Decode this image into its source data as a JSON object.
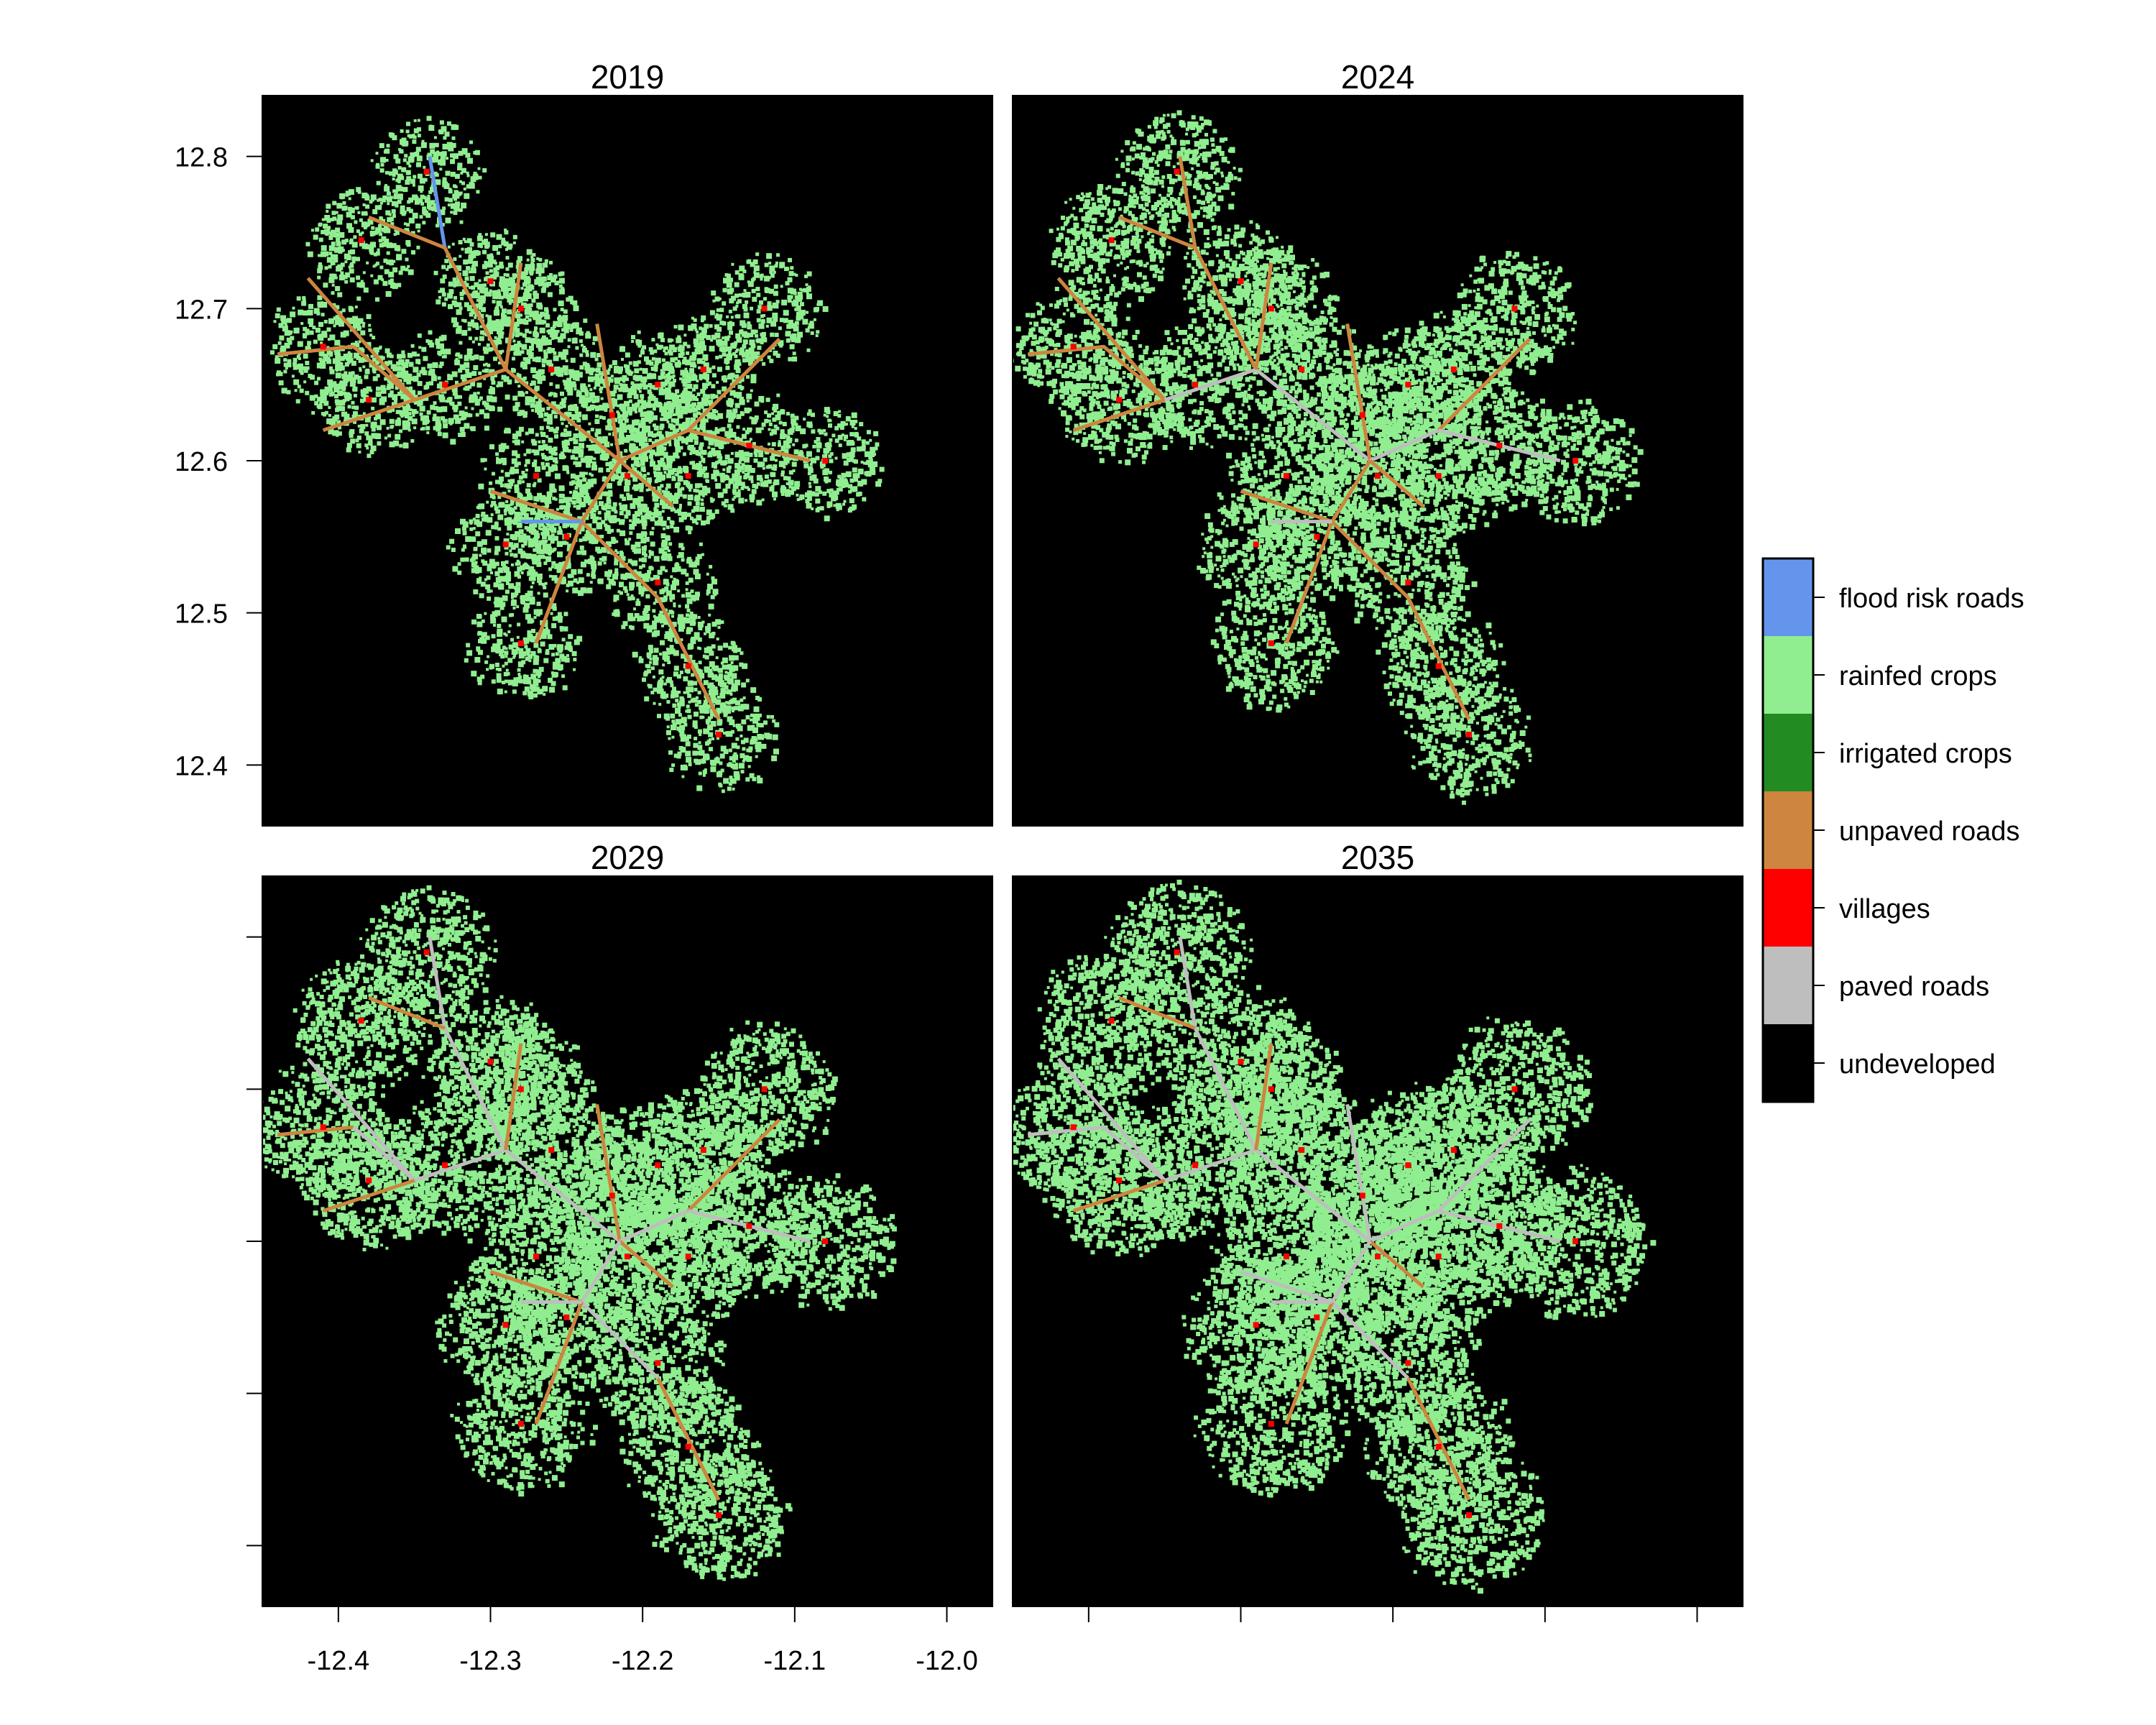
{
  "panels": [
    {
      "title": "2019",
      "stage": 0
    },
    {
      "title": "2024",
      "stage": 1
    },
    {
      "title": "2029",
      "stage": 2
    },
    {
      "title": "2035",
      "stage": 3
    }
  ],
  "axes": {
    "x_ticks": [
      "-12.4",
      "-12.3",
      "-12.2",
      "-12.1",
      "-12.0"
    ],
    "y_ticks": [
      "12.8",
      "12.7",
      "12.6",
      "12.5",
      "12.4"
    ]
  },
  "legend": {
    "position": "right",
    "items": [
      {
        "label": "flood risk roads",
        "color": "#6495ED"
      },
      {
        "label": "rainfed crops",
        "color": "#90EE90"
      },
      {
        "label": "irrigated crops",
        "color": "#228B22"
      },
      {
        "label": "unpaved roads",
        "color": "#CD853F"
      },
      {
        "label": "villages",
        "color": "#FF0000"
      },
      {
        "label": "paved roads",
        "color": "#BEBEBE"
      },
      {
        "label": "undeveloped",
        "color": "#000000"
      }
    ]
  },
  "chart_data": {
    "type": "heatmap",
    "xlim": [
      -12.45,
      -11.97
    ],
    "ylim": [
      12.36,
      12.84
    ],
    "x_ticks": [
      -12.4,
      -12.3,
      -12.2,
      -12.1,
      -12.0
    ],
    "y_ticks": [
      12.8,
      12.7,
      12.6,
      12.5,
      12.4
    ],
    "years": [
      "2019",
      "2024",
      "2029",
      "2035"
    ],
    "categories": [
      "flood risk roads",
      "rainfed crops",
      "irrigated crops",
      "unpaved roads",
      "villages",
      "paved roads",
      "undeveloped"
    ],
    "background_category": "undeveloped",
    "village_clusters": [
      [
        -12.342,
        12.79
      ],
      [
        -12.385,
        12.745
      ],
      [
        -12.3,
        12.718
      ],
      [
        -12.41,
        12.675
      ],
      [
        -12.38,
        12.64
      ],
      [
        -12.33,
        12.65
      ],
      [
        -12.28,
        12.7
      ],
      [
        -12.26,
        12.66
      ],
      [
        -12.22,
        12.63
      ],
      [
        -12.19,
        12.65
      ],
      [
        -12.16,
        12.66
      ],
      [
        -12.12,
        12.7
      ],
      [
        -12.13,
        12.61
      ],
      [
        -12.08,
        12.6
      ],
      [
        -12.17,
        12.59
      ],
      [
        -12.21,
        12.59
      ],
      [
        -12.27,
        12.59
      ],
      [
        -12.25,
        12.55
      ],
      [
        -12.29,
        12.545
      ],
      [
        -12.28,
        12.48
      ],
      [
        -12.19,
        12.52
      ],
      [
        -12.17,
        12.465
      ],
      [
        -12.15,
        12.42
      ]
    ],
    "road_network": [
      {
        "from": [
          -12.34,
          12.8
        ],
        "to": [
          -12.33,
          12.74
        ],
        "status": [
          "flood risk roads",
          "unpaved roads",
          "paved roads",
          "paved roads"
        ]
      },
      {
        "from": [
          -12.33,
          12.74
        ],
        "to": [
          -12.29,
          12.66
        ],
        "status": [
          "unpaved roads",
          "unpaved roads",
          "paved roads",
          "paved roads"
        ]
      },
      {
        "from": [
          -12.38,
          12.76
        ],
        "to": [
          -12.33,
          12.74
        ],
        "status": [
          "unpaved roads",
          "unpaved roads",
          "unpaved roads",
          "unpaved roads"
        ]
      },
      {
        "from": [
          -12.42,
          12.72
        ],
        "to": [
          -12.35,
          12.64
        ],
        "status": [
          "unpaved roads",
          "unpaved roads",
          "paved roads",
          "paved roads"
        ]
      },
      {
        "from": [
          -12.44,
          12.67
        ],
        "to": [
          -12.39,
          12.675
        ],
        "status": [
          "unpaved roads",
          "unpaved roads",
          "unpaved roads",
          "paved roads"
        ]
      },
      {
        "from": [
          -12.39,
          12.675
        ],
        "to": [
          -12.35,
          12.64
        ],
        "status": [
          "unpaved roads",
          "unpaved roads",
          "paved roads",
          "paved roads"
        ]
      },
      {
        "from": [
          -12.35,
          12.64
        ],
        "to": [
          -12.29,
          12.66
        ],
        "status": [
          "unpaved roads",
          "paved roads",
          "paved roads",
          "paved roads"
        ]
      },
      {
        "from": [
          -12.41,
          12.62
        ],
        "to": [
          -12.35,
          12.64
        ],
        "status": [
          "unpaved roads",
          "unpaved roads",
          "unpaved roads",
          "unpaved roads"
        ]
      },
      {
        "from": [
          -12.29,
          12.66
        ],
        "to": [
          -12.215,
          12.6
        ],
        "status": [
          "unpaved roads",
          "paved roads",
          "paved roads",
          "paved roads"
        ]
      },
      {
        "from": [
          -12.28,
          12.73
        ],
        "to": [
          -12.29,
          12.66
        ],
        "status": [
          "unpaved roads",
          "unpaved roads",
          "unpaved roads",
          "unpaved roads"
        ]
      },
      {
        "from": [
          -12.23,
          12.69
        ],
        "to": [
          -12.215,
          12.6
        ],
        "status": [
          "unpaved roads",
          "unpaved roads",
          "unpaved roads",
          "paved roads"
        ]
      },
      {
        "from": [
          -12.215,
          12.6
        ],
        "to": [
          -12.17,
          12.62
        ],
        "status": [
          "unpaved roads",
          "paved roads",
          "paved roads",
          "paved roads"
        ]
      },
      {
        "from": [
          -12.17,
          12.62
        ],
        "to": [
          -12.11,
          12.68
        ],
        "status": [
          "unpaved roads",
          "unpaved roads",
          "unpaved roads",
          "paved roads"
        ]
      },
      {
        "from": [
          -12.17,
          12.62
        ],
        "to": [
          -12.09,
          12.6
        ],
        "status": [
          "unpaved roads",
          "paved roads",
          "paved roads",
          "paved roads"
        ]
      },
      {
        "from": [
          -12.215,
          12.6
        ],
        "to": [
          -12.18,
          12.57
        ],
        "status": [
          "unpaved roads",
          "unpaved roads",
          "unpaved roads",
          "unpaved roads"
        ]
      },
      {
        "from": [
          -12.215,
          12.6
        ],
        "to": [
          -12.24,
          12.56
        ],
        "status": [
          "unpaved roads",
          "unpaved roads",
          "paved roads",
          "paved roads"
        ]
      },
      {
        "from": [
          -12.3,
          12.58
        ],
        "to": [
          -12.24,
          12.56
        ],
        "status": [
          "unpaved roads",
          "unpaved roads",
          "unpaved roads",
          "paved roads"
        ]
      },
      {
        "from": [
          -12.24,
          12.56
        ],
        "to": [
          -12.19,
          12.51
        ],
        "status": [
          "unpaved roads",
          "unpaved roads",
          "paved roads",
          "paved roads"
        ]
      },
      {
        "from": [
          -12.19,
          12.51
        ],
        "to": [
          -12.15,
          12.43
        ],
        "status": [
          "unpaved roads",
          "unpaved roads",
          "unpaved roads",
          "unpaved roads"
        ]
      },
      {
        "from": [
          -12.24,
          12.56
        ],
        "to": [
          -12.27,
          12.48
        ],
        "status": [
          "unpaved roads",
          "unpaved roads",
          "unpaved roads",
          "unpaved roads"
        ]
      },
      {
        "from": [
          -12.28,
          12.56
        ],
        "to": [
          -12.24,
          12.56
        ],
        "status": [
          "flood risk roads",
          "paved roads",
          "paved roads",
          "paved roads"
        ]
      }
    ]
  }
}
